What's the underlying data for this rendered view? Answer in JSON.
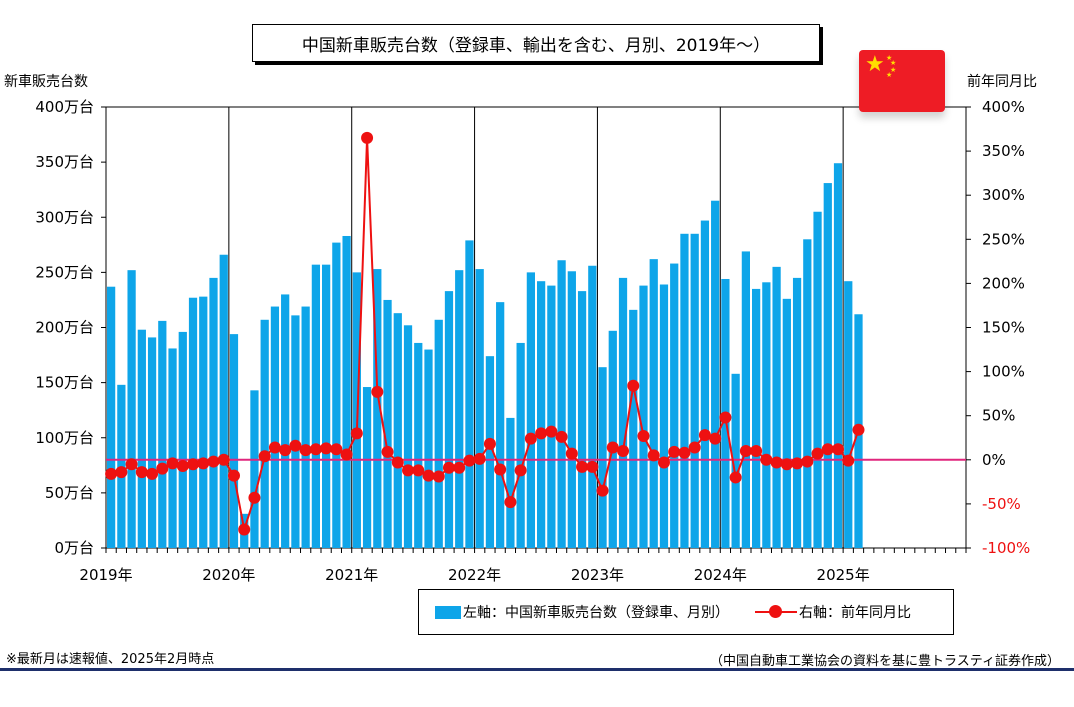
{
  "title": "中国新車販売台数（登録車、輸出を含む、月別、2019年～）",
  "left_axis_title": "新車販売台数",
  "right_axis_title": "前年同月比",
  "legend": {
    "bar_label": "左軸：中国新車販売台数（登録車、月別）",
    "line_label": "右軸：前年同月比"
  },
  "footnote": "※最新月は速報値、2025年2月時点",
  "source": "（中国自動車工業協会の資料を基に豊トラスティ証券作成）",
  "flag_icon": "china-flag-icon",
  "colors": {
    "bar": "#0ea5e9",
    "line": "#ee1111",
    "zero_line": "#e0267d",
    "grid": "#000000"
  },
  "chart_data": {
    "type": "bar+line",
    "x_labels": [
      "2019年",
      "2020年",
      "2021年",
      "2022年",
      "2023年",
      "2024年",
      "2025年"
    ],
    "months_on_axis": 84,
    "y_left": {
      "ticks": [
        "0万台",
        "50万台",
        "100万台",
        "150万台",
        "200万台",
        "250万台",
        "300万台",
        "350万台",
        "400万台"
      ],
      "range": [
        0,
        400
      ],
      "unit": "万台"
    },
    "y_right": {
      "ticks": [
        "-100%",
        "-50%",
        "0%",
        "50%",
        "100%",
        "150%",
        "200%",
        "250%",
        "300%",
        "350%",
        "400%"
      ],
      "range": [
        -100,
        400
      ],
      "unit": "%"
    },
    "series": [
      {
        "name": "左軸：中国新車販売台数（登録車、月別）",
        "type": "bar",
        "axis": "left",
        "values": [
          237,
          148,
          252,
          198,
          191,
          206,
          181,
          196,
          227,
          228,
          245,
          266,
          194,
          31,
          143,
          207,
          219,
          230,
          211,
          219,
          257,
          257,
          277,
          283,
          250,
          146,
          253,
          225,
          213,
          202,
          186,
          180,
          207,
          233,
          252,
          279,
          253,
          174,
          223,
          118,
          186,
          250,
          242,
          238,
          261,
          251,
          233,
          256,
          164,
          197,
          245,
          216,
          238,
          262,
          239,
          258,
          285,
          285,
          297,
          315,
          244,
          158,
          269,
          235,
          241,
          255,
          226,
          245,
          280,
          305,
          331,
          349,
          242,
          212
        ]
      },
      {
        "name": "右軸：前年同月比",
        "type": "line",
        "axis": "right",
        "values": [
          -16,
          -14,
          -5,
          -14,
          -16,
          -10,
          -4,
          -7,
          -5,
          -4,
          -2,
          0,
          -18,
          -79,
          -43,
          4,
          14,
          11,
          16,
          11,
          12,
          13,
          12,
          6,
          30,
          365,
          77,
          9,
          -3,
          -12,
          -12,
          -18,
          -19,
          -9,
          -9,
          -1,
          1,
          18,
          -11,
          -48,
          -12,
          24,
          30,
          32,
          26,
          7,
          -8,
          -8,
          -35,
          14,
          10,
          84,
          27,
          5,
          -3,
          9,
          8,
          14,
          28,
          24,
          48,
          -20,
          10,
          10,
          0,
          -3,
          -5,
          -4,
          -2,
          7,
          12,
          12,
          -1,
          34
        ]
      }
    ]
  }
}
